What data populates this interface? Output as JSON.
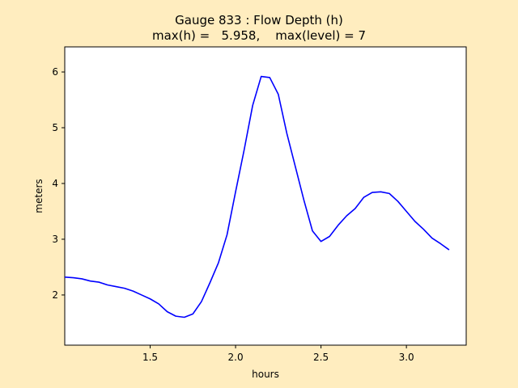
{
  "chart_data": {
    "type": "line",
    "title": "Gauge 833 : Flow Depth (h)",
    "subtitle": "max(h) =   5.958,    max(level) = 7",
    "xlabel": "hours",
    "ylabel": "meters",
    "xlim": [
      1.0,
      3.35
    ],
    "ylim": [
      1.1,
      6.45
    ],
    "xticks": [
      1.5,
      2.0,
      2.5,
      3.0
    ],
    "xtick_labels": [
      "1.5",
      "2.0",
      "2.5",
      "3.0"
    ],
    "yticks": [
      2,
      3,
      4,
      5,
      6
    ],
    "ytick_labels": [
      "2",
      "3",
      "4",
      "5",
      "6"
    ],
    "grid": false,
    "line_color": "#0000ff",
    "series": [
      {
        "x": [
          1.0,
          1.05,
          1.1,
          1.15,
          1.2,
          1.25,
          1.3,
          1.35,
          1.4,
          1.45,
          1.5,
          1.55,
          1.6,
          1.65,
          1.7,
          1.75,
          1.8,
          1.85,
          1.9,
          1.95,
          2.0,
          2.05,
          2.1,
          2.15,
          2.2,
          2.25,
          2.3,
          2.35,
          2.4,
          2.45,
          2.5,
          2.55,
          2.6,
          2.65,
          2.7,
          2.75,
          2.8,
          2.85,
          2.9,
          2.95,
          3.0,
          3.05,
          3.1,
          3.15,
          3.2,
          3.25
        ],
        "y": [
          2.32,
          2.31,
          2.29,
          2.25,
          2.23,
          2.18,
          2.15,
          2.12,
          2.07,
          2.0,
          1.93,
          1.84,
          1.7,
          1.62,
          1.6,
          1.66,
          1.88,
          2.22,
          2.58,
          3.08,
          3.85,
          4.6,
          5.4,
          5.92,
          5.9,
          5.6,
          4.9,
          4.3,
          3.7,
          3.15,
          2.96,
          3.05,
          3.25,
          3.42,
          3.55,
          3.75,
          3.84,
          3.85,
          3.82,
          3.68,
          3.5,
          3.32,
          3.18,
          3.02,
          2.92,
          2.81
        ]
      }
    ]
  }
}
